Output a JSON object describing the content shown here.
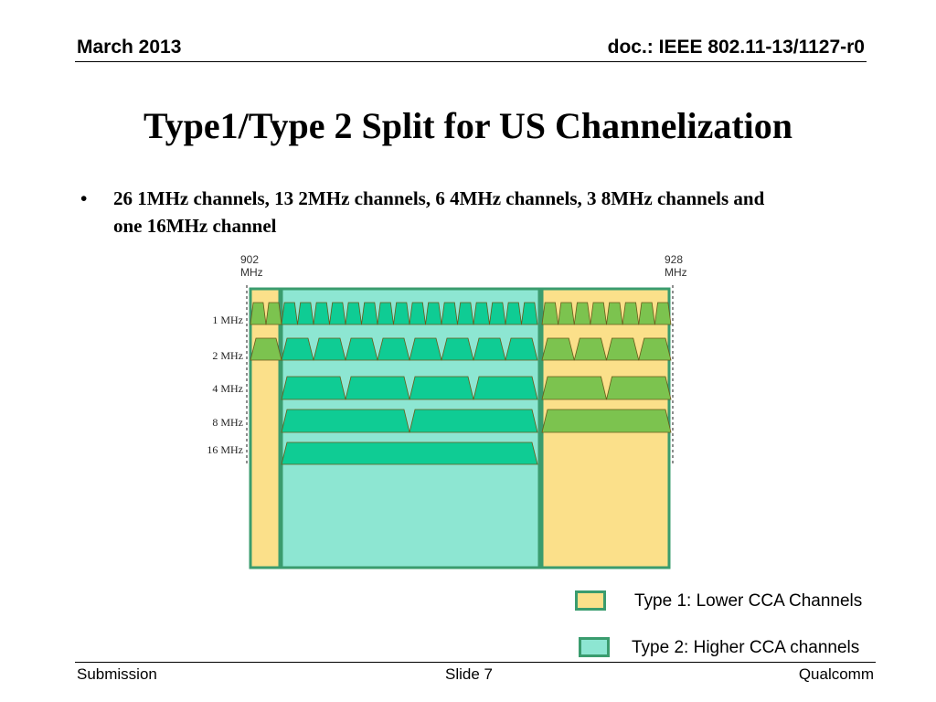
{
  "header": {
    "date": "March 2013",
    "doc": "doc.: IEEE 802.11-13/1127-r0"
  },
  "title": "Type1/Type 2 Split for US Channelization",
  "bullet": {
    "marker": "•",
    "text": "26 1MHz channels, 13 2MHz channels, 6 4MHz channels, 3 8MHz channels and one 16MHz channel"
  },
  "diagram": {
    "freq_start": {
      "value": "902",
      "unit": "MHz"
    },
    "freq_end": {
      "value": "928",
      "unit": "MHz"
    },
    "rows": [
      {
        "label": "1 MHz",
        "width_mhz": 1,
        "count": 26,
        "left_type1": 2,
        "type2": 16,
        "right_type1": 8
      },
      {
        "label": "2 MHz",
        "width_mhz": 2,
        "count": 13,
        "left_type1": 1,
        "type2": 8,
        "right_type1": 4
      },
      {
        "label": "4 MHz",
        "width_mhz": 4,
        "count": 6,
        "left_type1": 0,
        "type2": 4,
        "right_type1": 2
      },
      {
        "label": "8 MHz",
        "width_mhz": 8,
        "count": 3,
        "left_type1": 0,
        "type2": 2,
        "right_type1": 1
      },
      {
        "label": "16 MHz",
        "width_mhz": 16,
        "count": 1,
        "left_type1": 0,
        "type2": 1,
        "right_type1": 0
      }
    ],
    "colors": {
      "type1_fill": "#fbe08a",
      "type2_fill": "#8de6d2",
      "region_border": "#3a9c6e",
      "type1_channel": "#7cc34f",
      "type2_channel": "#0fcc94",
      "channel_border": "#6b5a1a"
    }
  },
  "legend": {
    "type1": "Type 1: Lower CCA Channels",
    "type2": "Type 2: Higher CCA channels"
  },
  "footer": {
    "left": "Submission",
    "center": "Slide 7",
    "right": "Qualcomm"
  }
}
